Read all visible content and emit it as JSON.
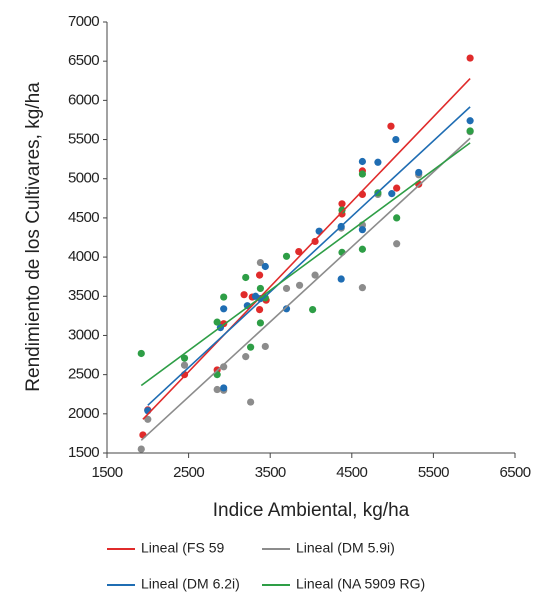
{
  "chart_data": {
    "type": "scatter",
    "x_label": "Indice Ambiental, kg/ha",
    "y_label": "Rendimiento de los Cultivares, kg/ha",
    "xlim": [
      1500,
      6500
    ],
    "xticks": [
      1500,
      2500,
      3500,
      4500,
      5500,
      6500
    ],
    "ylim": [
      1500,
      7000
    ],
    "yticks": [
      1500,
      2000,
      2500,
      3000,
      3500,
      4000,
      4500,
      5000,
      5500,
      6000,
      6500,
      7000
    ],
    "trendline": "linear",
    "series": [
      {
        "name": "Lineal (FS 59",
        "color": "#e02b2b",
        "x": [
          1940,
          2000,
          2450,
          2850,
          2930,
          3180,
          3280,
          3370,
          3370,
          3450,
          3850,
          4050,
          4380,
          4380,
          4630,
          4630,
          4980,
          5050,
          5320,
          5950
        ],
        "values": [
          1730,
          2050,
          2500,
          2560,
          3150,
          3520,
          3490,
          3770,
          3330,
          3450,
          4070,
          4200,
          4680,
          4550,
          5100,
          4800,
          5670,
          4880,
          4930,
          6540
        ]
      },
      {
        "name": "Lineal (DM 5.9i)",
        "color": "#8c8c8c",
        "x": [
          1920,
          2000,
          2450,
          2850,
          2930,
          2930,
          3200,
          3260,
          3380,
          3440,
          3700,
          3860,
          4050,
          4370,
          4630,
          4630,
          4820,
          5050,
          5320,
          5950
        ],
        "values": [
          1550,
          1930,
          2620,
          2310,
          2300,
          2600,
          2730,
          2150,
          3930,
          2860,
          3600,
          3640,
          3770,
          4370,
          3610,
          4410,
          4800,
          4170,
          5050,
          5600
        ]
      },
      {
        "name": "Lineal (DM 6.2i)",
        "color": "#1f6db3",
        "x": [
          2000,
          2890,
          2930,
          2930,
          3220,
          3320,
          3380,
          3440,
          3700,
          4100,
          4370,
          4370,
          4630,
          4630,
          4820,
          4990,
          5040,
          5320,
          5950
        ],
        "values": [
          2040,
          3100,
          2330,
          3340,
          3380,
          3500,
          3470,
          3880,
          3340,
          4330,
          4390,
          3720,
          5220,
          4350,
          5210,
          4810,
          5500,
          5080,
          5740
        ]
      },
      {
        "name": "Lineal (NA 5909 RG)",
        "color": "#2e9e46",
        "x": [
          1920,
          2450,
          2850,
          2850,
          2930,
          3200,
          3260,
          3380,
          3380,
          3440,
          3700,
          4020,
          4380,
          4380,
          4630,
          4630,
          4820,
          5050,
          5950
        ],
        "values": [
          2770,
          2710,
          2500,
          3170,
          3490,
          3740,
          2850,
          3600,
          3160,
          3480,
          4010,
          3330,
          4060,
          4600,
          4100,
          5060,
          4820,
          4500,
          5610
        ]
      }
    ]
  }
}
